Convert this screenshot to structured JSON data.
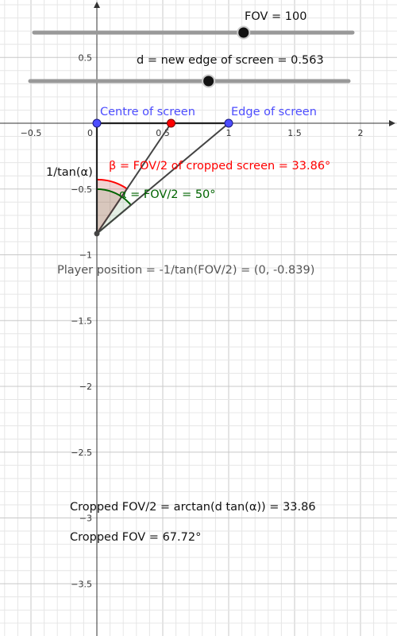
{
  "sliders": {
    "fov_label": "FOV = 100",
    "fov_value": 100,
    "fov_range": [
      0,
      180
    ],
    "d_label": "d = new edge of screen = 0.563",
    "d_value": 0.563,
    "d_range": [
      -0.5,
      1.9
    ]
  },
  "axes": {
    "x_ticks": [
      {
        "value": -0.5,
        "label": "−0.5"
      },
      {
        "value": 0,
        "label": "0"
      },
      {
        "value": 0.5,
        "label": "0.5"
      },
      {
        "value": 1,
        "label": "1"
      },
      {
        "value": 1.5,
        "label": "1.5"
      },
      {
        "value": 2,
        "label": "2"
      }
    ],
    "y_ticks": [
      {
        "value": 0.5,
        "label": "0.5"
      },
      {
        "value": -0.5,
        "label": "−0.5"
      },
      {
        "value": -1,
        "label": "−1"
      },
      {
        "value": -1.5,
        "label": "−1.5"
      },
      {
        "value": -2,
        "label": "−2"
      },
      {
        "value": -2.5,
        "label": "−2.5"
      },
      {
        "value": -3,
        "label": "−3"
      },
      {
        "value": -3.5,
        "label": "−3.5"
      }
    ]
  },
  "points": {
    "centre": {
      "x": 0,
      "y": 0,
      "label": "Centre of screen",
      "color": "#4d4dff"
    },
    "edge": {
      "x": 1,
      "y": 0,
      "label": "Edge of screen",
      "color": "#4d4dff"
    },
    "cropped": {
      "x": 0.563,
      "y": 0,
      "color": "#ff0000"
    },
    "player": {
      "x": 0,
      "y": -0.839
    }
  },
  "labels": {
    "one_over_tan": "1/tan(α)",
    "beta": "β = FOV/2 of cropped screen = 33.86°",
    "alpha": "α = FOV/2 = 50°",
    "player": "Player position = -1/tan(FOV/2) = (0, -0.839)",
    "cropped_half": "Cropped FOV/2 = arctan(d tan(α)) = 33.86",
    "cropped_full": "Cropped FOV = 67.72°"
  },
  "colors": {
    "beta": "#ff0000",
    "alpha": "#006400",
    "point_blue": "#4d4dff",
    "slider_track": "#999999",
    "segment": "#222222"
  }
}
